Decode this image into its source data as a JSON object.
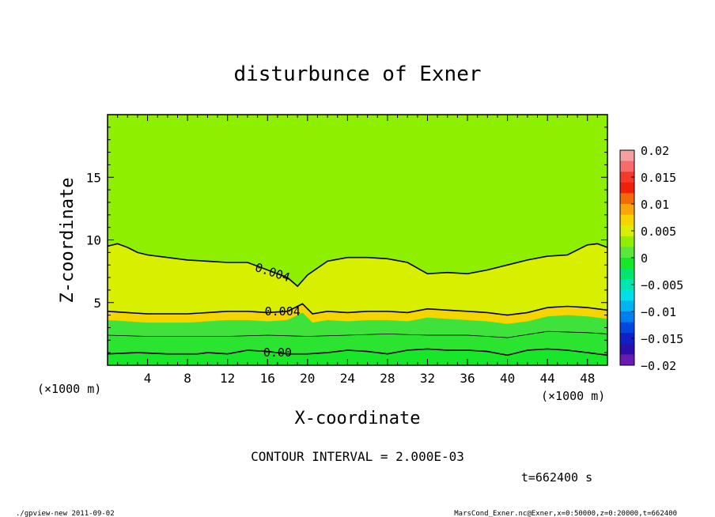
{
  "chart_data": {
    "type": "heatmap",
    "title": "disturbunce of Exner",
    "xlabel": "X-coordinate",
    "ylabel": "Z-coordinate",
    "x_unit_left": "(×1000 m)",
    "x_unit_right": "(×1000 m)",
    "xlim": [
      0,
      50
    ],
    "ylim": [
      0,
      20
    ],
    "x_ticks": [
      4,
      8,
      12,
      16,
      20,
      24,
      28,
      32,
      36,
      40,
      44,
      48
    ],
    "y_ticks": [
      5,
      10,
      15
    ],
    "colorbar": {
      "ticks": [
        "0.02",
        "0.015",
        "0.01",
        "0.005",
        "0",
        "−0.005",
        "−0.01",
        "−0.015",
        "−0.02"
      ],
      "levels": [
        {
          "value": 0.018,
          "color": "#f4a0a0"
        },
        {
          "value": 0.016,
          "color": "#f66b6b"
        },
        {
          "value": 0.014,
          "color": "#f53a2a"
        },
        {
          "value": 0.012,
          "color": "#f0200a"
        },
        {
          "value": 0.01,
          "color": "#f46a08"
        },
        {
          "value": 0.008,
          "color": "#f8a50a"
        },
        {
          "value": 0.006,
          "color": "#f5d400"
        },
        {
          "value": 0.004,
          "color": "#d8f000"
        },
        {
          "value": 0.002,
          "color": "#8fef00"
        },
        {
          "value": 0.0,
          "color": "#5ae63c"
        },
        {
          "value": -0.002,
          "color": "#17e629"
        },
        {
          "value": -0.004,
          "color": "#00e66f"
        },
        {
          "value": -0.006,
          "color": "#00e6b0"
        },
        {
          "value": -0.008,
          "color": "#00e0e8"
        },
        {
          "value": -0.01,
          "color": "#00b4f0"
        },
        {
          "value": -0.012,
          "color": "#0080ee"
        },
        {
          "value": -0.014,
          "color": "#0048e0"
        },
        {
          "value": -0.016,
          "color": "#1020c8"
        },
        {
          "value": -0.018,
          "color": "#2a10a8"
        },
        {
          "value": -0.02,
          "color": "#6a1cb0"
        }
      ]
    },
    "contours": [
      {
        "label": "0.004",
        "x": [
          0,
          1,
          2,
          3,
          4,
          6,
          8,
          10,
          12,
          14,
          16,
          18,
          19,
          20,
          22,
          24,
          26,
          28,
          30,
          32,
          34,
          36,
          38,
          40,
          42,
          44,
          46,
          48,
          49,
          50
        ],
        "z": [
          9.5,
          9.7,
          9.4,
          9.0,
          8.8,
          8.6,
          8.4,
          8.3,
          8.2,
          8.2,
          7.6,
          7.0,
          6.3,
          7.2,
          8.3,
          8.6,
          8.6,
          8.5,
          8.2,
          7.3,
          7.4,
          7.3,
          7.6,
          8.0,
          8.4,
          8.7,
          8.8,
          9.6,
          9.7,
          9.4
        ]
      },
      {
        "label": "0.004",
        "x": [
          0,
          2,
          4,
          6,
          8,
          10,
          12,
          14,
          16,
          18,
          19.5,
          20.5,
          22,
          24,
          26,
          28,
          30,
          32,
          34,
          36,
          38,
          40,
          42,
          44,
          46,
          48,
          50
        ],
        "z": [
          4.3,
          4.2,
          4.1,
          4.1,
          4.1,
          4.2,
          4.3,
          4.3,
          4.2,
          4.3,
          4.9,
          4.1,
          4.3,
          4.2,
          4.3,
          4.3,
          4.2,
          4.5,
          4.4,
          4.3,
          4.2,
          4.0,
          4.2,
          4.6,
          4.7,
          4.6,
          4.4
        ]
      },
      {
        "label": "",
        "x": [
          0,
          4,
          8,
          12,
          16,
          20,
          24,
          28,
          32,
          36,
          40,
          44,
          48,
          50
        ],
        "z": [
          2.4,
          2.3,
          2.3,
          2.3,
          2.4,
          2.3,
          2.4,
          2.5,
          2.4,
          2.4,
          2.2,
          2.7,
          2.6,
          2.5
        ]
      },
      {
        "label": "0.00",
        "x": [
          0,
          3,
          6,
          9,
          10,
          12,
          14,
          16,
          18,
          20,
          22,
          24,
          26,
          28,
          30,
          32,
          34,
          36,
          38,
          40,
          42,
          44,
          46,
          48,
          50
        ],
        "z": [
          0.9,
          1.0,
          0.9,
          0.9,
          1.0,
          0.9,
          1.2,
          1.1,
          0.9,
          0.9,
          1.0,
          1.2,
          1.1,
          0.9,
          1.2,
          1.3,
          1.2,
          1.2,
          1.1,
          0.8,
          1.2,
          1.3,
          1.2,
          1.0,
          0.8
        ]
      }
    ],
    "inline_labels": [
      {
        "text": "0.004",
        "x": 16.5,
        "z": 7.4
      },
      {
        "text": "0.004",
        "x": 17.5,
        "z": 4.3
      },
      {
        "text": "0.00",
        "x": 17.0,
        "z": 1.0
      }
    ],
    "contour_interval_text": "CONTOUR INTERVAL = 2.000E-03",
    "time_text": "t=662400 s",
    "footer_left": "./gpview-new  2011-09-02",
    "footer_right": "MarsCond_Exner.nc@Exner,x=0:50000,z=0:20000,t=662400"
  }
}
